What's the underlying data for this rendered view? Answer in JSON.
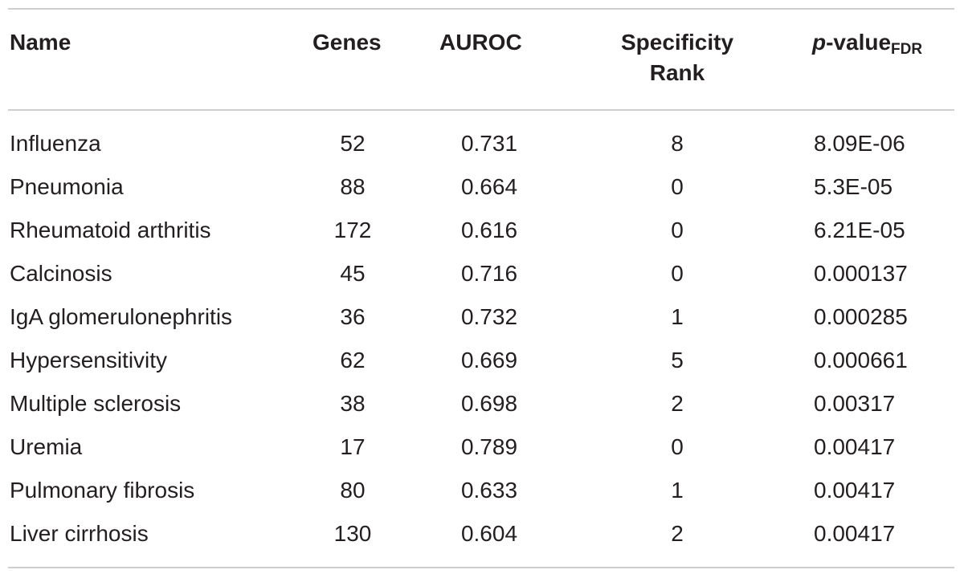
{
  "table": {
    "headers": {
      "name": "Name",
      "genes": "Genes",
      "auroc": "AUROC",
      "specificity_line1": "Specificity",
      "specificity_line2": "Rank",
      "pvalue_prefix": "p",
      "pvalue_main": "-value",
      "pvalue_sub": "FDR"
    },
    "rows": [
      {
        "name": "Influenza",
        "genes": "52",
        "auroc": "0.731",
        "specificity_rank": "8",
        "p_value_fdr": "8.09E-06"
      },
      {
        "name": "Pneumonia",
        "genes": "88",
        "auroc": "0.664",
        "specificity_rank": "0",
        "p_value_fdr": "5.3E-05"
      },
      {
        "name": "Rheumatoid arthritis",
        "genes": "172",
        "auroc": "0.616",
        "specificity_rank": "0",
        "p_value_fdr": "6.21E-05"
      },
      {
        "name": "Calcinosis",
        "genes": "45",
        "auroc": "0.716",
        "specificity_rank": "0",
        "p_value_fdr": "0.000137"
      },
      {
        "name": "IgA glomerulonephritis",
        "genes": "36",
        "auroc": "0.732",
        "specificity_rank": "1",
        "p_value_fdr": "0.000285"
      },
      {
        "name": "Hypersensitivity",
        "genes": "62",
        "auroc": "0.669",
        "specificity_rank": "5",
        "p_value_fdr": "0.000661"
      },
      {
        "name": "Multiple sclerosis",
        "genes": "38",
        "auroc": "0.698",
        "specificity_rank": "2",
        "p_value_fdr": "0.00317"
      },
      {
        "name": "Uremia",
        "genes": "17",
        "auroc": "0.789",
        "specificity_rank": "0",
        "p_value_fdr": "0.00417"
      },
      {
        "name": "Pulmonary fibrosis",
        "genes": "80",
        "auroc": "0.633",
        "specificity_rank": "1",
        "p_value_fdr": "0.00417"
      },
      {
        "name": "Liver cirrhosis",
        "genes": "130",
        "auroc": "0.604",
        "specificity_rank": "2",
        "p_value_fdr": "0.00417"
      }
    ]
  }
}
